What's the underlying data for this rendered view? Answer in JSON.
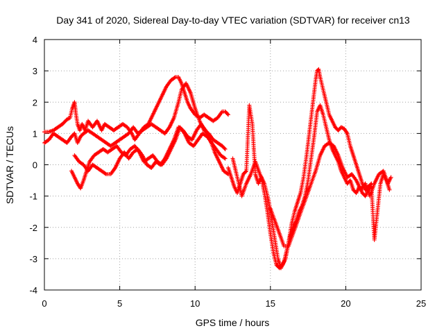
{
  "chart_data": {
    "type": "scatter",
    "title": "Day 341 of 2020, Sidereal Day-to-day VTEC variation (SDTVAR) for receiver cn13",
    "xlabel": "GPS time / hours",
    "ylabel": "SDTVAR / TECUs",
    "xlim": [
      0,
      25
    ],
    "ylim": [
      -4,
      4
    ],
    "x_ticks": [
      0,
      5,
      10,
      15,
      20,
      25
    ],
    "y_ticks": [
      -4,
      -3,
      -2,
      -1,
      0,
      1,
      2,
      3,
      4
    ],
    "grid": true,
    "legend": "none",
    "marker": "plus",
    "color": "#ff0000",
    "series": [
      {
        "x": [
          0.0,
          0.3,
          0.6,
          0.9,
          1.2,
          1.5,
          1.7,
          1.85,
          2.0,
          2.1,
          2.2,
          2.35,
          2.5,
          2.7,
          2.9,
          3.2,
          3.5,
          3.8,
          4.0,
          4.3,
          4.6,
          4.9,
          5.2,
          5.5,
          5.8,
          6.0,
          6.3,
          6.6,
          6.9,
          7.2,
          7.5,
          7.8,
          8.1,
          8.4,
          8.7,
          8.9,
          9.1,
          9.3,
          9.5,
          9.7,
          10.0,
          10.3,
          10.6,
          10.9,
          11.2,
          11.5,
          11.8,
          12.0,
          12.2
        ],
        "y": [
          1.05,
          1.05,
          1.1,
          1.2,
          1.3,
          1.45,
          1.5,
          1.8,
          2.0,
          1.6,
          1.3,
          1.1,
          1.3,
          1.1,
          1.4,
          1.2,
          1.4,
          1.1,
          1.3,
          1.2,
          1.1,
          1.2,
          1.3,
          1.2,
          1.0,
          0.8,
          1.0,
          1.2,
          1.3,
          1.6,
          1.9,
          2.2,
          2.5,
          2.7,
          2.8,
          2.8,
          2.6,
          2.3,
          2.0,
          1.8,
          1.6,
          1.5,
          1.6,
          1.5,
          1.4,
          1.5,
          1.7,
          1.7,
          1.6
        ]
      },
      {
        "x": [
          0.0,
          0.3,
          0.6,
          0.9,
          1.2,
          1.5,
          1.8,
          2.0,
          2.2,
          2.4,
          2.6,
          2.9,
          3.2,
          3.5,
          3.8,
          4.1,
          4.4,
          4.7,
          5.0,
          5.3,
          5.6,
          5.9,
          6.2,
          6.5,
          6.8,
          7.1,
          7.4,
          7.7,
          8.0,
          8.3,
          8.6,
          8.9,
          9.1,
          9.4,
          9.7,
          10.0,
          10.3,
          10.6,
          10.9,
          11.2,
          11.5,
          11.8,
          12.0
        ],
        "y": [
          0.7,
          0.8,
          1.0,
          0.9,
          0.8,
          0.7,
          0.9,
          1.0,
          0.7,
          0.9,
          1.0,
          1.1,
          1.0,
          0.9,
          0.8,
          0.7,
          0.6,
          0.7,
          0.8,
          0.9,
          1.0,
          1.2,
          1.0,
          1.1,
          1.2,
          1.3,
          1.2,
          1.1,
          1.0,
          1.2,
          1.5,
          2.0,
          2.4,
          2.6,
          2.3,
          1.8,
          1.4,
          1.1,
          1.0,
          0.8,
          0.7,
          0.6,
          0.5
        ]
      },
      {
        "x": [
          1.8,
          2.0,
          2.2,
          2.4,
          2.6,
          2.8,
          3.0,
          3.3,
          3.6,
          3.9,
          4.2,
          4.5,
          4.8,
          5.1,
          5.4,
          5.7,
          6.0,
          6.3,
          6.6,
          6.9,
          7.2,
          7.5,
          7.8,
          8.1,
          8.4,
          8.7,
          9.0,
          9.3,
          9.6,
          9.9,
          10.2,
          10.5,
          10.8,
          11.1,
          11.4,
          11.7,
          12.0
        ],
        "y": [
          -0.2,
          -0.4,
          -0.6,
          -0.75,
          -0.5,
          -0.2,
          0.1,
          0.3,
          0.4,
          0.5,
          0.4,
          0.5,
          0.6,
          0.4,
          0.3,
          0.5,
          0.6,
          0.4,
          0.1,
          0.2,
          0.3,
          0.1,
          0.0,
          0.2,
          0.5,
          0.8,
          1.2,
          1.0,
          0.7,
          0.6,
          0.8,
          1.0,
          0.9,
          0.7,
          0.5,
          0.3,
          0.2
        ]
      },
      {
        "x": [
          2.0,
          2.3,
          2.6,
          2.9,
          3.2,
          3.5,
          3.8,
          4.1,
          4.4,
          4.7,
          5.0,
          5.3,
          5.6,
          5.9,
          6.2,
          6.5,
          6.8,
          7.1,
          7.4,
          7.7,
          8.0,
          8.3,
          8.6,
          8.9,
          9.2,
          9.5,
          9.8,
          10.1,
          10.4,
          10.7,
          11.0,
          11.3,
          11.6,
          11.9,
          12.2
        ],
        "y": [
          0.3,
          0.1,
          0.0,
          -0.2,
          0.0,
          -0.1,
          -0.2,
          -0.3,
          -0.3,
          -0.1,
          0.2,
          0.4,
          0.2,
          0.4,
          0.5,
          0.3,
          0.0,
          -0.1,
          0.1,
          0.0,
          0.2,
          0.5,
          0.8,
          1.2,
          1.1,
          0.9,
          0.8,
          1.1,
          1.3,
          1.1,
          0.8,
          0.4,
          0.1,
          -0.2,
          -0.3
        ]
      },
      {
        "x": [
          12.2,
          12.4,
          12.6,
          12.8,
          13.0,
          13.2,
          13.4,
          13.6,
          13.8,
          14.0,
          14.2,
          14.4,
          14.6,
          14.8,
          15.0,
          15.2,
          15.4,
          15.6,
          15.8,
          16.0,
          16.2,
          16.4,
          16.6,
          16.8,
          17.0,
          17.2,
          17.4,
          17.6,
          17.8,
          18.0,
          18.1,
          18.2,
          18.3,
          18.5,
          18.7,
          18.9,
          19.1,
          19.3,
          19.5,
          19.7,
          19.9,
          20.1,
          20.3,
          20.5,
          20.7,
          20.9,
          21.1,
          21.3,
          21.5,
          21.7
        ],
        "y": [
          -0.1,
          -0.4,
          -0.7,
          -0.9,
          -0.6,
          -0.3,
          -0.2,
          1.9,
          1.3,
          -0.3,
          -0.6,
          -0.4,
          -0.9,
          -1.5,
          -2.2,
          -2.8,
          -3.2,
          -3.3,
          -3.2,
          -3.0,
          -2.5,
          -1.9,
          -1.5,
          -1.2,
          -0.9,
          -0.4,
          0.3,
          1.1,
          1.9,
          2.7,
          3.0,
          3.05,
          2.8,
          2.4,
          2.0,
          1.6,
          1.4,
          1.2,
          1.1,
          1.2,
          1.15,
          1.0,
          0.6,
          0.3,
          0.0,
          -0.3,
          -0.6,
          -0.8,
          -0.7,
          -0.6
        ]
      },
      {
        "x": [
          12.5,
          12.8,
          13.1,
          13.4,
          13.7,
          14.0,
          14.3,
          14.6,
          14.9,
          15.1,
          15.3,
          15.5,
          15.7,
          15.9,
          16.1,
          16.3,
          16.5,
          16.7,
          16.9,
          17.1,
          17.3,
          17.5,
          17.7,
          17.9,
          18.1,
          18.3,
          18.5,
          18.7,
          18.9,
          19.1,
          19.3,
          19.5,
          19.7,
          19.9,
          20.1,
          20.3,
          20.5,
          20.7,
          20.9,
          21.1,
          21.3,
          21.5,
          21.7,
          21.9,
          22.1,
          22.3,
          22.5,
          22.7,
          22.9
        ],
        "y": [
          0.2,
          -0.4,
          -1.0,
          -0.6,
          -0.3,
          0.1,
          -0.3,
          -0.6,
          -1.2,
          -1.8,
          -2.4,
          -3.0,
          -3.3,
          -3.1,
          -2.7,
          -2.3,
          -2.0,
          -1.8,
          -1.5,
          -1.3,
          -1.0,
          -0.5,
          0.2,
          0.9,
          1.7,
          1.9,
          1.6,
          1.2,
          0.8,
          0.5,
          0.3,
          0.1,
          -0.2,
          -0.4,
          -0.6,
          -0.5,
          -0.8,
          -0.9,
          -0.7,
          -0.9,
          -1.0,
          -0.8,
          -0.7,
          -2.4,
          -1.5,
          -0.6,
          -0.3,
          -0.5,
          -0.8
        ]
      },
      {
        "x": [
          15.0,
          15.3,
          15.6,
          15.9,
          16.2,
          16.5,
          16.8,
          17.1,
          17.4,
          17.7,
          18.0,
          18.3,
          18.6,
          18.9,
          19.2,
          19.5,
          19.8,
          20.1,
          20.4,
          20.7,
          21.0,
          21.3,
          21.6,
          21.9,
          22.2,
          22.5,
          22.8,
          23.0
        ],
        "y": [
          -1.4,
          -1.8,
          -2.2,
          -2.6,
          -2.6,
          -2.2,
          -1.8,
          -1.4,
          -1.0,
          -0.6,
          -0.2,
          0.3,
          0.6,
          0.7,
          0.6,
          0.3,
          -0.1,
          -0.4,
          -0.3,
          -0.5,
          -0.8,
          -0.6,
          -1.0,
          -0.6,
          -0.3,
          -0.2,
          -0.6,
          -0.4
        ]
      }
    ]
  }
}
